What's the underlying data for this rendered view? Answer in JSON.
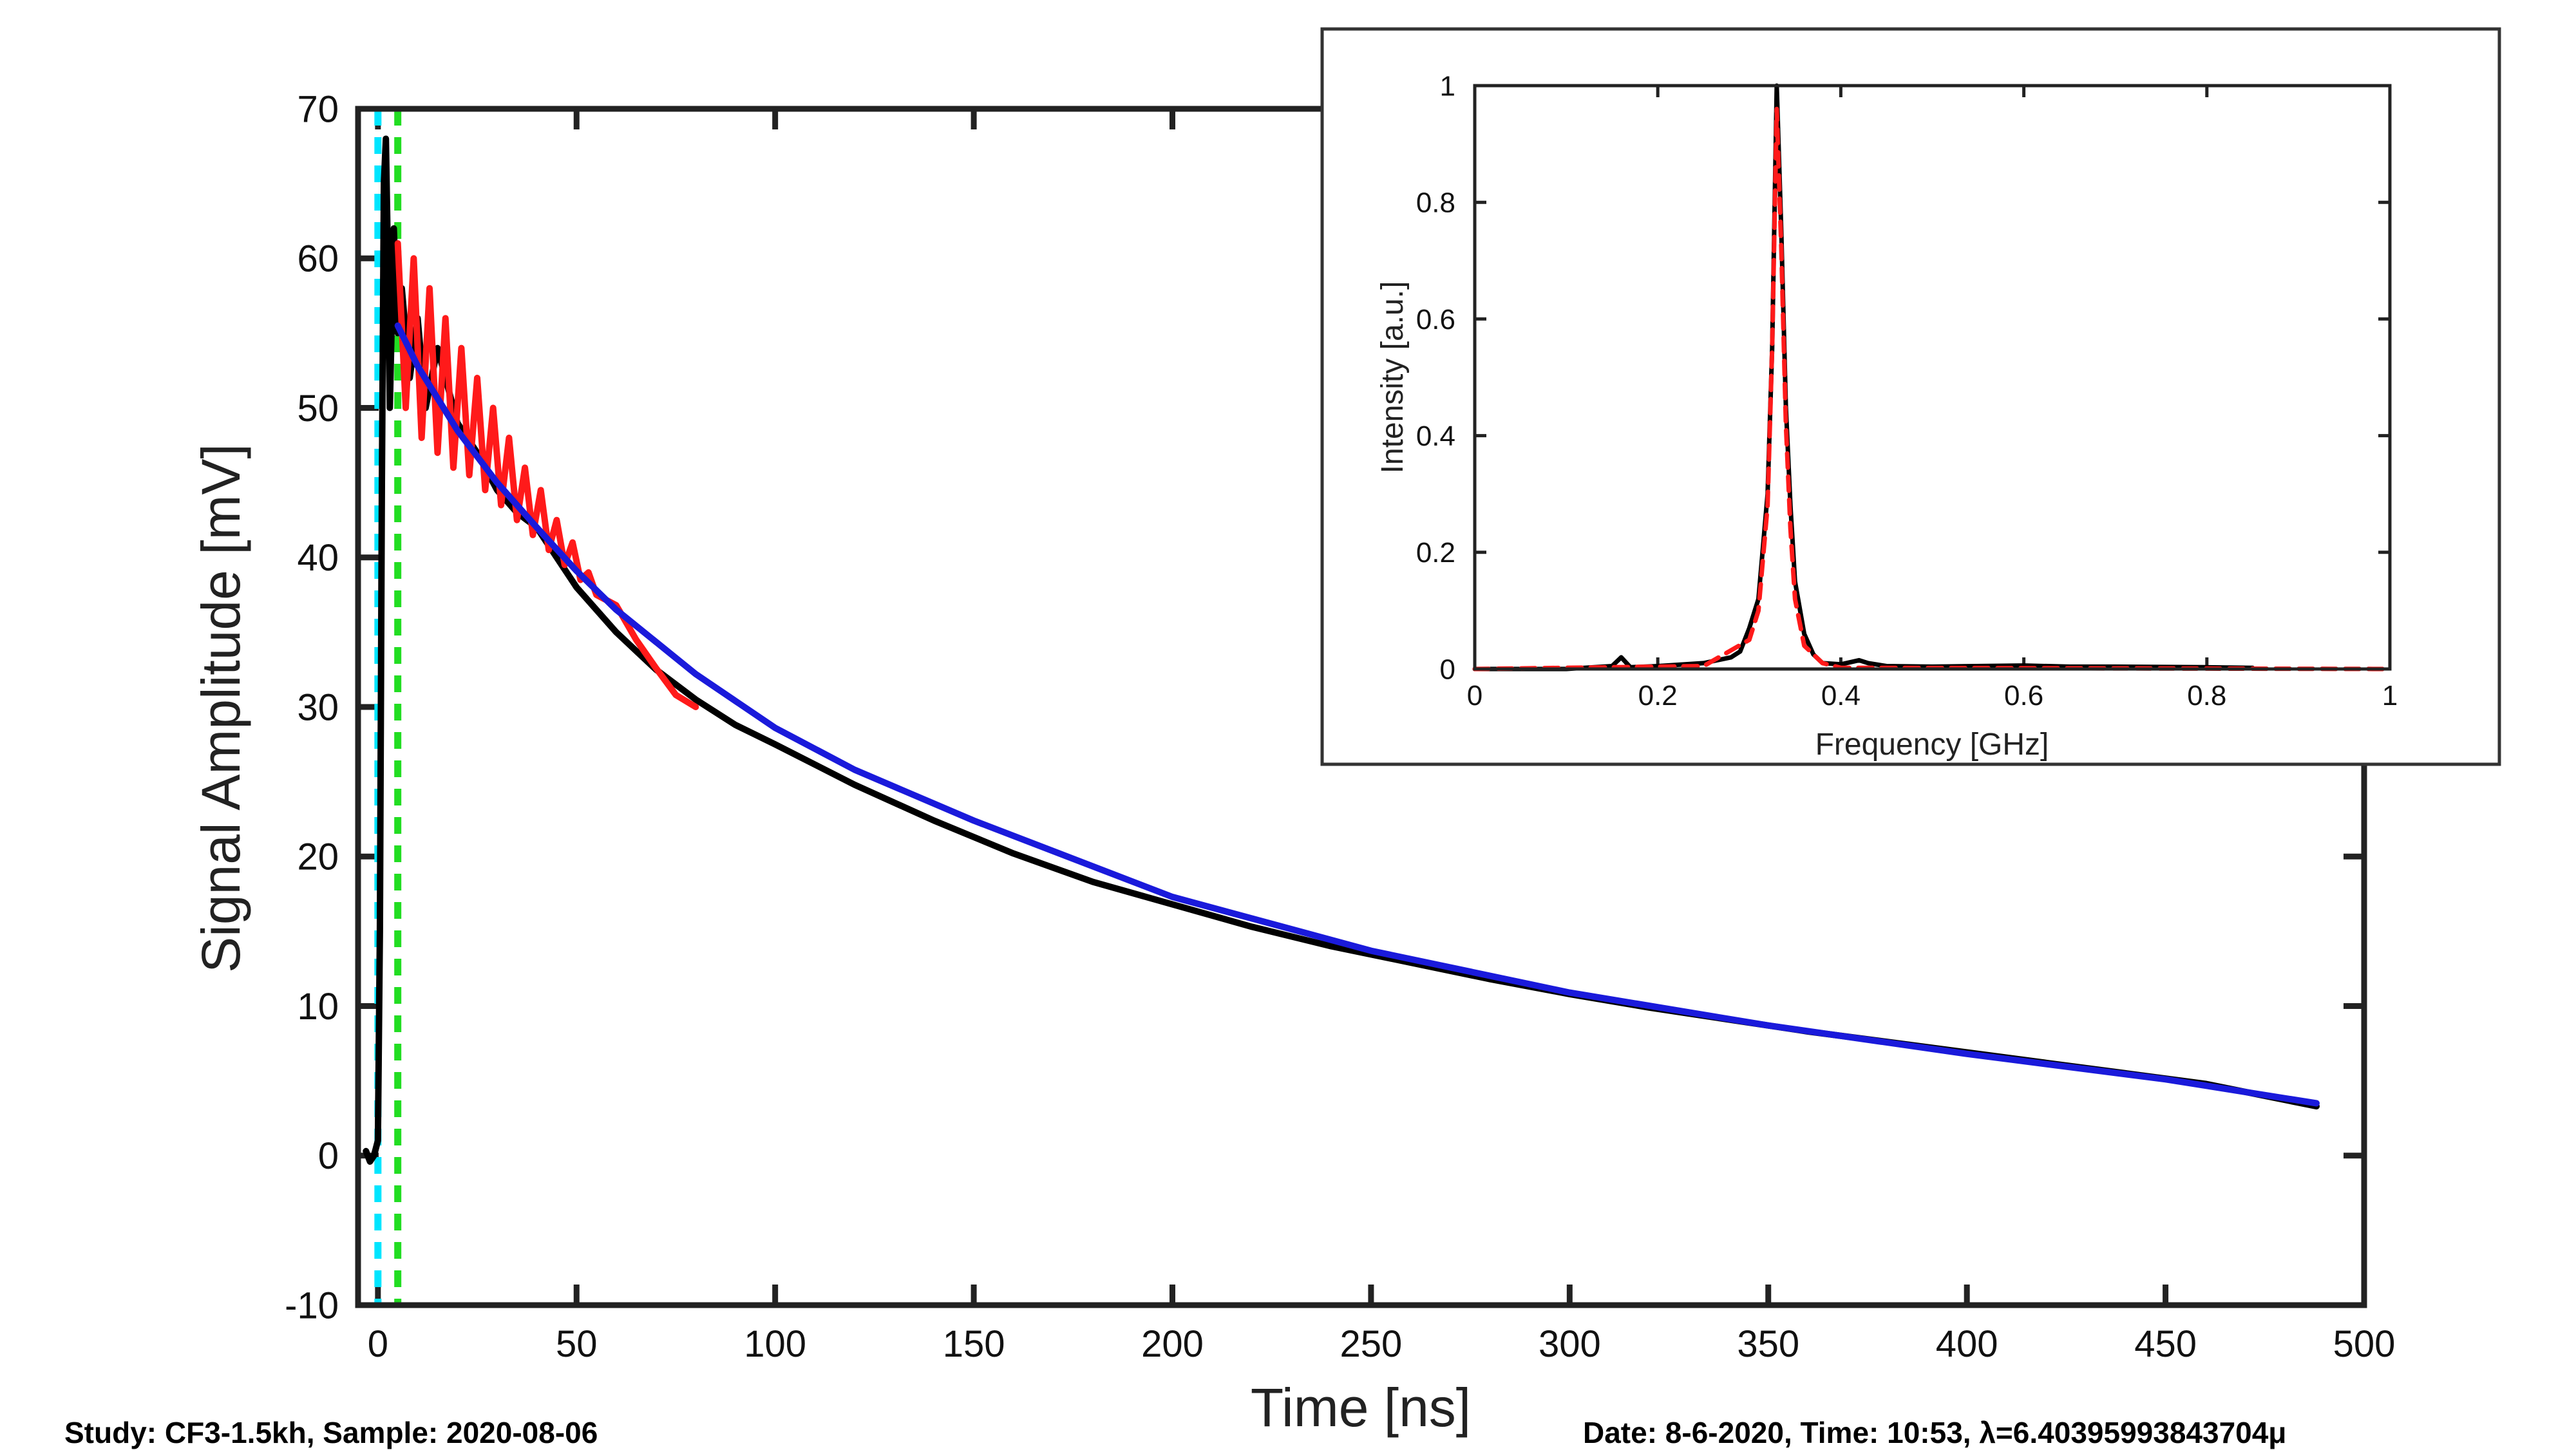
{
  "chart_data": [
    {
      "type": "line",
      "title": "",
      "xlabel": "Time [ns]",
      "ylabel": "Signal Amplitude [mV]",
      "xlim": [
        -5,
        500
      ],
      "ylim": [
        -10,
        70
      ],
      "xticks": [
        "0",
        "50",
        "100",
        "150",
        "200",
        "250",
        "300",
        "350",
        "400",
        "450",
        "500"
      ],
      "yticks": [
        "-10",
        "0",
        "10",
        "20",
        "30",
        "40",
        "50",
        "60",
        "70"
      ],
      "grid": false,
      "vertical_lines": [
        {
          "x": 0,
          "color": "#00e5ff",
          "style": "dashed"
        },
        {
          "x": 5,
          "color": "#22dd22",
          "style": "dashed"
        }
      ],
      "series": [
        {
          "color": "#000000",
          "x": [
            -3,
            -2,
            -1,
            0,
            0.5,
            1,
            1.5,
            2,
            2.5,
            3,
            3.5,
            4,
            5,
            6,
            8,
            10,
            12,
            15,
            20,
            25,
            30,
            35,
            40,
            50,
            60,
            70,
            80,
            90,
            100,
            120,
            140,
            160,
            180,
            200,
            220,
            240,
            260,
            280,
            300,
            320,
            340,
            360,
            380,
            400,
            420,
            440,
            460,
            488
          ],
          "y": [
            0.3,
            -0.4,
            0,
            1,
            15,
            45,
            65,
            68,
            60,
            50,
            56,
            62,
            55,
            58,
            52,
            56,
            50,
            54,
            49,
            47,
            44.5,
            43,
            42,
            38,
            35,
            32.5,
            30.5,
            28.8,
            27.5,
            24.8,
            22.4,
            20.2,
            18.3,
            16.8,
            15.3,
            14,
            12.9,
            11.8,
            10.8,
            9.9,
            9.1,
            8.3,
            7.6,
            6.9,
            6.2,
            5.5,
            4.8,
            3.3
          ]
        },
        {
          "color": "#ff1a1a",
          "x": [
            5,
            7,
            9,
            11,
            13,
            15,
            17,
            19,
            21,
            23,
            25,
            27,
            29,
            31,
            33,
            35,
            37,
            39,
            41,
            43,
            45,
            47,
            49,
            51,
            53,
            55,
            60,
            65,
            70,
            75,
            80
          ],
          "y": [
            61,
            50,
            60,
            48,
            58,
            47,
            56,
            46,
            54,
            45.5,
            52,
            44.5,
            50,
            43.5,
            48,
            42.5,
            46,
            41.5,
            44.5,
            40.5,
            42.5,
            39.5,
            41,
            38.5,
            39,
            37.5,
            36.8,
            34.5,
            32.6,
            30.8,
            30
          ]
        },
        {
          "color": "#1a1adb",
          "x": [
            5,
            10,
            20,
            30,
            40,
            50,
            60,
            80,
            100,
            120,
            150,
            200,
            250,
            300,
            350,
            400,
            450,
            488
          ],
          "y": [
            55.5,
            52.8,
            48.5,
            45,
            42,
            39.1,
            36.5,
            32.2,
            28.6,
            25.8,
            22.4,
            17.3,
            13.7,
            10.9,
            8.7,
            6.8,
            5.1,
            3.5
          ]
        }
      ]
    },
    {
      "type": "line",
      "title": "",
      "xlabel": "Frequency [GHz]",
      "ylabel": "Intensity [a.u.]",
      "xlim": [
        0,
        1
      ],
      "ylim": [
        0,
        1
      ],
      "xticks": [
        "0",
        "0.2",
        "0.4",
        "0.6",
        "0.8",
        "1"
      ],
      "yticks": [
        "0",
        "0.2",
        "0.4",
        "0.6",
        "0.8",
        "1"
      ],
      "grid": false,
      "series": [
        {
          "color": "#000000",
          "x": [
            0,
            0.1,
            0.15,
            0.16,
            0.17,
            0.2,
            0.25,
            0.28,
            0.29,
            0.3,
            0.31,
            0.32,
            0.325,
            0.33,
            0.335,
            0.34,
            0.345,
            0.35,
            0.36,
            0.37,
            0.38,
            0.4,
            0.42,
            0.43,
            0.45,
            0.5,
            0.6,
            0.65,
            0.7,
            0.8,
            0.85
          ],
          "y": [
            0,
            0,
            0.005,
            0.02,
            0.003,
            0.005,
            0.01,
            0.02,
            0.03,
            0.07,
            0.12,
            0.3,
            0.55,
            1.0,
            0.75,
            0.45,
            0.28,
            0.15,
            0.06,
            0.025,
            0.01,
            0.008,
            0.015,
            0.01,
            0.005,
            0.004,
            0.006,
            0.004,
            0.004,
            0.003,
            0.002
          ]
        },
        {
          "color": "#ff1a1a",
          "dashed": true,
          "x": [
            0,
            0.25,
            0.3,
            0.31,
            0.32,
            0.325,
            0.33,
            0.335,
            0.34,
            0.345,
            0.35,
            0.36,
            0.38,
            0.4,
            1
          ],
          "y": [
            0,
            0.005,
            0.05,
            0.1,
            0.28,
            0.55,
            0.96,
            0.72,
            0.42,
            0.24,
            0.12,
            0.04,
            0.01,
            0.002,
            0
          ]
        }
      ]
    }
  ],
  "captions": {
    "left": "Study: CF3-1.5kh,   Sample: 2020-08-06",
    "right": "Date: 8-6-2020,   Time: 10:53,    λ=6.40395993843704μ"
  }
}
